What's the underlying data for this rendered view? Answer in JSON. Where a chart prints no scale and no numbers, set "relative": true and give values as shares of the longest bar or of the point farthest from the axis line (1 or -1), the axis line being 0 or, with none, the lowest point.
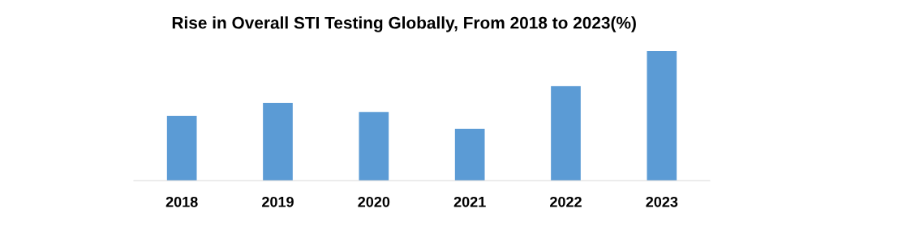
{
  "chart_data": {
    "type": "bar",
    "title": "Rise in Overall STI Testing Globally, From 2018 to 2023(%)",
    "categories": [
      "2018",
      "2019",
      "2020",
      "2021",
      "2022",
      "2023"
    ],
    "values": [
      0.5,
      0.6,
      0.53,
      0.4,
      0.73,
      1.0
    ],
    "color": "#5b9bd5",
    "relative": true,
    "grid": false,
    "legend": false
  }
}
